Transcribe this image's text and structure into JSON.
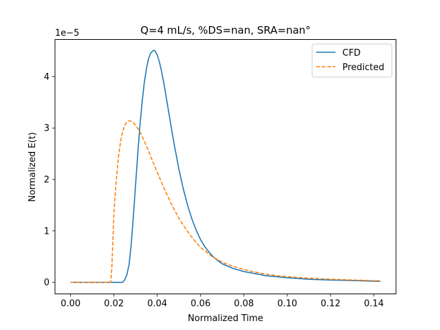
{
  "chart_data": {
    "type": "line",
    "title": "Q=4 mL/s, %DS=nan, SRA=nan°",
    "xlabel": "Normalized Time",
    "ylabel": "Normalized E(t)",
    "y_offset_label": "1e−5",
    "xlim": [
      -0.0072,
      0.1502
    ],
    "ylim": [
      -0.225,
      4.72
    ],
    "x_ticks": [
      0.0,
      0.02,
      0.04,
      0.06,
      0.08,
      0.1,
      0.12,
      0.14
    ],
    "x_tick_labels": [
      "0.00",
      "0.02",
      "0.04",
      "0.06",
      "0.08",
      "0.10",
      "0.12",
      "0.14"
    ],
    "y_ticks": [
      0,
      1,
      2,
      3,
      4
    ],
    "y_tick_labels": [
      "0",
      "1",
      "2",
      "3",
      "4"
    ],
    "grid": false,
    "legend": "top-right",
    "series": [
      {
        "name": "CFD",
        "color": "#1f77b4",
        "style": "solid",
        "x": [
          0.0,
          0.01,
          0.02,
          0.024,
          0.025,
          0.026,
          0.027,
          0.028,
          0.029,
          0.03,
          0.031,
          0.032,
          0.033,
          0.034,
          0.035,
          0.036,
          0.037,
          0.038,
          0.0385,
          0.039,
          0.04,
          0.041,
          0.042,
          0.043,
          0.044,
          0.045,
          0.046,
          0.047,
          0.048,
          0.05,
          0.052,
          0.054,
          0.056,
          0.058,
          0.06,
          0.062,
          0.064,
          0.066,
          0.068,
          0.07,
          0.075,
          0.08,
          0.085,
          0.09,
          0.095,
          0.1,
          0.11,
          0.12,
          0.13,
          0.143
        ],
        "y": [
          0.0,
          0.0,
          0.0,
          0.0,
          0.05,
          0.15,
          0.35,
          0.75,
          1.3,
          1.9,
          2.5,
          3.05,
          3.5,
          3.88,
          4.15,
          4.35,
          4.46,
          4.5,
          4.51,
          4.5,
          4.42,
          4.28,
          4.1,
          3.88,
          3.63,
          3.38,
          3.13,
          2.88,
          2.64,
          2.2,
          1.82,
          1.5,
          1.23,
          1.01,
          0.83,
          0.69,
          0.58,
          0.49,
          0.42,
          0.36,
          0.27,
          0.21,
          0.17,
          0.13,
          0.11,
          0.09,
          0.06,
          0.045,
          0.035,
          0.02
        ]
      },
      {
        "name": "Predicted",
        "color": "#ff7f0e",
        "style": "dashed",
        "x": [
          0.0,
          0.01,
          0.0185,
          0.019,
          0.0195,
          0.02,
          0.021,
          0.022,
          0.023,
          0.024,
          0.025,
          0.026,
          0.027,
          0.028,
          0.029,
          0.03,
          0.031,
          0.032,
          0.034,
          0.036,
          0.038,
          0.04,
          0.042,
          0.044,
          0.046,
          0.048,
          0.05,
          0.052,
          0.055,
          0.058,
          0.06,
          0.065,
          0.07,
          0.075,
          0.08,
          0.085,
          0.09,
          0.095,
          0.1,
          0.11,
          0.12,
          0.13,
          0.143
        ],
        "y": [
          0.0,
          0.0,
          0.0,
          0.25,
          0.8,
          1.35,
          1.95,
          2.4,
          2.72,
          2.93,
          3.05,
          3.12,
          3.14,
          3.13,
          3.1,
          3.05,
          2.99,
          2.92,
          2.75,
          2.55,
          2.34,
          2.14,
          1.94,
          1.75,
          1.57,
          1.4,
          1.25,
          1.11,
          0.93,
          0.77,
          0.68,
          0.51,
          0.39,
          0.31,
          0.25,
          0.2,
          0.16,
          0.13,
          0.11,
          0.08,
          0.06,
          0.045,
          0.03
        ]
      }
    ]
  }
}
